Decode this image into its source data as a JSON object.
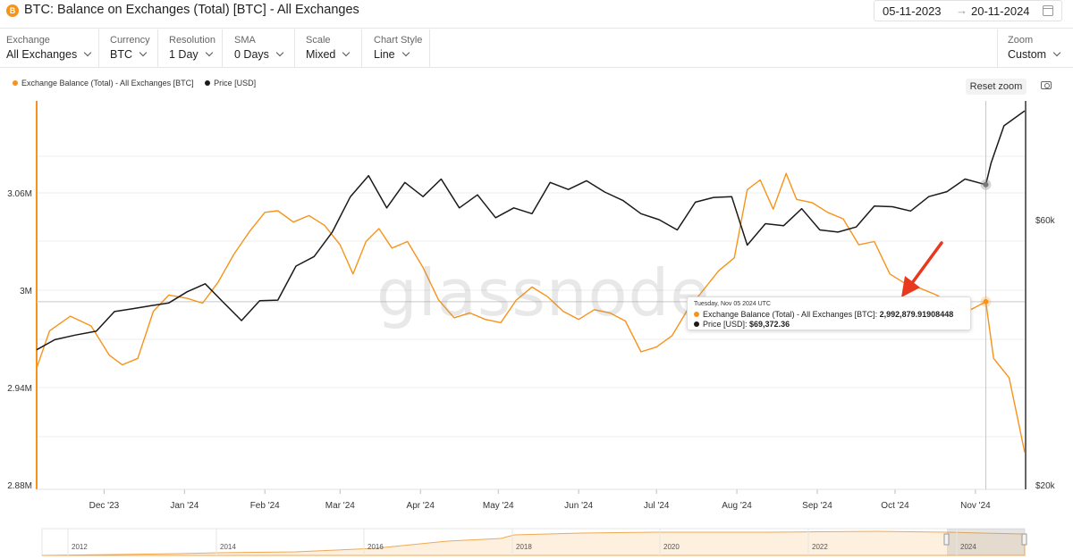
{
  "header": {
    "coin_icon": "B",
    "title": "BTC: Balance on Exchanges (Total) [BTC] - All Exchanges",
    "date_from": "05-11-2023",
    "date_arrow": "→",
    "date_to": "20-11-2024"
  },
  "controls": [
    {
      "label": "Exchange",
      "value": "All Exchanges"
    },
    {
      "label": "Currency",
      "value": "BTC"
    },
    {
      "label": "Resolution",
      "value": "1 Day"
    },
    {
      "label": "SMA",
      "value": "0 Days"
    },
    {
      "label": "Scale",
      "value": "Mixed"
    },
    {
      "label": "Chart Style",
      "value": "Line"
    },
    {
      "label": "Zoom",
      "value": "Custom"
    }
  ],
  "legend": {
    "balance": "Exchange Balance (Total) - All Exchanges [BTC]",
    "price": "Price [USD]"
  },
  "reset_zoom": "Reset zoom",
  "watermark": "glassnode",
  "tooltip": {
    "date": "Tuesday, Nov 05 2024 UTC",
    "balance_label": "Exchange Balance (Total) - All Exchanges [BTC]:",
    "balance_value": "2,992,879.91908448",
    "price_label": "Price [USD]:",
    "price_value": "$69,372.36"
  },
  "colors": {
    "balance": "#f7931a",
    "price": "#1a1a1a",
    "annotation_arrow": "#e8381e"
  },
  "icons": [
    "bitcoin-icon",
    "calendar-icon",
    "chevron-down-icon",
    "camera-icon"
  ],
  "chart_data": {
    "type": "line",
    "x_ticks": [
      "Dec '23",
      "Jan '24",
      "Feb '24",
      "Mar '24",
      "Apr '24",
      "May '24",
      "Jun '24",
      "Jul '24",
      "Aug '24",
      "Sep '24",
      "Oct '24",
      "Nov '24"
    ],
    "y_left_ticks": [
      "3.06M",
      "3M",
      "2.94M",
      "2.88M"
    ],
    "y_right_ticks": [
      "$60k",
      "$20k"
    ],
    "y_left_range": [
      2880000,
      3120000
    ],
    "y_right_range_label": "$20k – $60k+ (log)",
    "navigator_years": [
      "2012",
      "2014",
      "2016",
      "2018",
      "2020",
      "2022",
      "2024"
    ],
    "series": [
      {
        "name": "Exchange Balance (Total) - All Exchanges [BTC]",
        "axis": "left",
        "points": [
          [
            "2023-11-05",
            2952000
          ],
          [
            "2023-11-10",
            2975000
          ],
          [
            "2023-11-18",
            2984000
          ],
          [
            "2023-11-26",
            2978000
          ],
          [
            "2023-12-03",
            2960000
          ],
          [
            "2023-12-08",
            2954000
          ],
          [
            "2023-12-14",
            2958000
          ],
          [
            "2023-12-20",
            2987000
          ],
          [
            "2023-12-26",
            2997000
          ],
          [
            "2024-01-02",
            2995000
          ],
          [
            "2024-01-08",
            2992000
          ],
          [
            "2024-01-14",
            3005000
          ],
          [
            "2024-01-20",
            3022000
          ],
          [
            "2024-01-26",
            3036000
          ],
          [
            "2024-02-01",
            3048000
          ],
          [
            "2024-02-06",
            3049000
          ],
          [
            "2024-02-12",
            3042000
          ],
          [
            "2024-02-18",
            3046000
          ],
          [
            "2024-02-24",
            3040000
          ],
          [
            "2024-03-01",
            3028000
          ],
          [
            "2024-03-06",
            3010000
          ],
          [
            "2024-03-11",
            3030000
          ],
          [
            "2024-03-16",
            3038000
          ],
          [
            "2024-03-21",
            3026000
          ],
          [
            "2024-03-27",
            3030000
          ],
          [
            "2024-04-02",
            3014000
          ],
          [
            "2024-04-08",
            2994000
          ],
          [
            "2024-04-14",
            2983000
          ],
          [
            "2024-04-20",
            2986000
          ],
          [
            "2024-04-26",
            2982000
          ],
          [
            "2024-05-02",
            2980000
          ],
          [
            "2024-05-08",
            2994000
          ],
          [
            "2024-05-14",
            3002000
          ],
          [
            "2024-05-20",
            2996000
          ],
          [
            "2024-05-26",
            2987000
          ],
          [
            "2024-06-01",
            2982000
          ],
          [
            "2024-06-07",
            2988000
          ],
          [
            "2024-06-13",
            2986000
          ],
          [
            "2024-06-19",
            2981000
          ],
          [
            "2024-06-25",
            2962000
          ],
          [
            "2024-07-01",
            2965000
          ],
          [
            "2024-07-07",
            2972000
          ],
          [
            "2024-07-13",
            2988000
          ],
          [
            "2024-07-19",
            3000000
          ],
          [
            "2024-07-25",
            3012000
          ],
          [
            "2024-07-31",
            3020000
          ],
          [
            "2024-08-05",
            3062000
          ],
          [
            "2024-08-10",
            3068000
          ],
          [
            "2024-08-15",
            3050000
          ],
          [
            "2024-08-20",
            3072000
          ],
          [
            "2024-08-24",
            3056000
          ],
          [
            "2024-08-30",
            3054000
          ],
          [
            "2024-09-05",
            3048000
          ],
          [
            "2024-09-11",
            3044000
          ],
          [
            "2024-09-17",
            3028000
          ],
          [
            "2024-09-23",
            3030000
          ],
          [
            "2024-09-29",
            3010000
          ],
          [
            "2024-10-05",
            3004000
          ],
          [
            "2024-10-11",
            3001000
          ],
          [
            "2024-10-17",
            2997000
          ],
          [
            "2024-10-23",
            2991000
          ],
          [
            "2024-10-29",
            2987000
          ],
          [
            "2024-11-05",
            2992880
          ],
          [
            "2024-11-08",
            2958000
          ],
          [
            "2024-11-14",
            2946000
          ],
          [
            "2024-11-20",
            2900000
          ]
        ]
      },
      {
        "name": "Price [USD]",
        "axis": "right",
        "points": [
          [
            "2023-11-05",
            35000
          ],
          [
            "2023-11-12",
            36500
          ],
          [
            "2023-11-20",
            37200
          ],
          [
            "2023-11-28",
            37800
          ],
          [
            "2023-12-05",
            41000
          ],
          [
            "2023-12-12",
            41500
          ],
          [
            "2023-12-19",
            42000
          ],
          [
            "2023-12-26",
            42500
          ],
          [
            "2024-01-02",
            44500
          ],
          [
            "2024-01-09",
            46000
          ],
          [
            "2024-01-16",
            42600
          ],
          [
            "2024-01-23",
            39500
          ],
          [
            "2024-01-30",
            42900
          ],
          [
            "2024-02-06",
            43000
          ],
          [
            "2024-02-13",
            49500
          ],
          [
            "2024-02-20",
            51500
          ],
          [
            "2024-02-27",
            57000
          ],
          [
            "2024-03-05",
            66000
          ],
          [
            "2024-03-12",
            72000
          ],
          [
            "2024-03-19",
            63000
          ],
          [
            "2024-03-26",
            70000
          ],
          [
            "2024-04-02",
            66000
          ],
          [
            "2024-04-09",
            71000
          ],
          [
            "2024-04-16",
            63000
          ],
          [
            "2024-04-23",
            66500
          ],
          [
            "2024-04-30",
            60500
          ],
          [
            "2024-05-07",
            63000
          ],
          [
            "2024-05-14",
            61500
          ],
          [
            "2024-05-21",
            70000
          ],
          [
            "2024-05-28",
            68000
          ],
          [
            "2024-06-04",
            70500
          ],
          [
            "2024-06-11",
            67300
          ],
          [
            "2024-06-18",
            65000
          ],
          [
            "2024-06-25",
            61500
          ],
          [
            "2024-07-02",
            60000
          ],
          [
            "2024-07-09",
            57500
          ],
          [
            "2024-07-16",
            64500
          ],
          [
            "2024-07-23",
            65800
          ],
          [
            "2024-07-30",
            66000
          ],
          [
            "2024-08-05",
            54000
          ],
          [
            "2024-08-12",
            59000
          ],
          [
            "2024-08-19",
            58500
          ],
          [
            "2024-08-26",
            62800
          ],
          [
            "2024-09-02",
            57500
          ],
          [
            "2024-09-09",
            57000
          ],
          [
            "2024-09-16",
            58200
          ],
          [
            "2024-09-23",
            63500
          ],
          [
            "2024-09-30",
            63300
          ],
          [
            "2024-10-07",
            62200
          ],
          [
            "2024-10-14",
            66000
          ],
          [
            "2024-10-21",
            67400
          ],
          [
            "2024-10-28",
            71000
          ],
          [
            "2024-11-05",
            69372
          ],
          [
            "2024-11-07",
            75800
          ],
          [
            "2024-11-12",
            88500
          ],
          [
            "2024-11-20",
            94200
          ]
        ]
      }
    ],
    "tooltip_point": {
      "date": "2024-11-05",
      "balance": 2992879.91908448,
      "price": 69372.36
    }
  }
}
